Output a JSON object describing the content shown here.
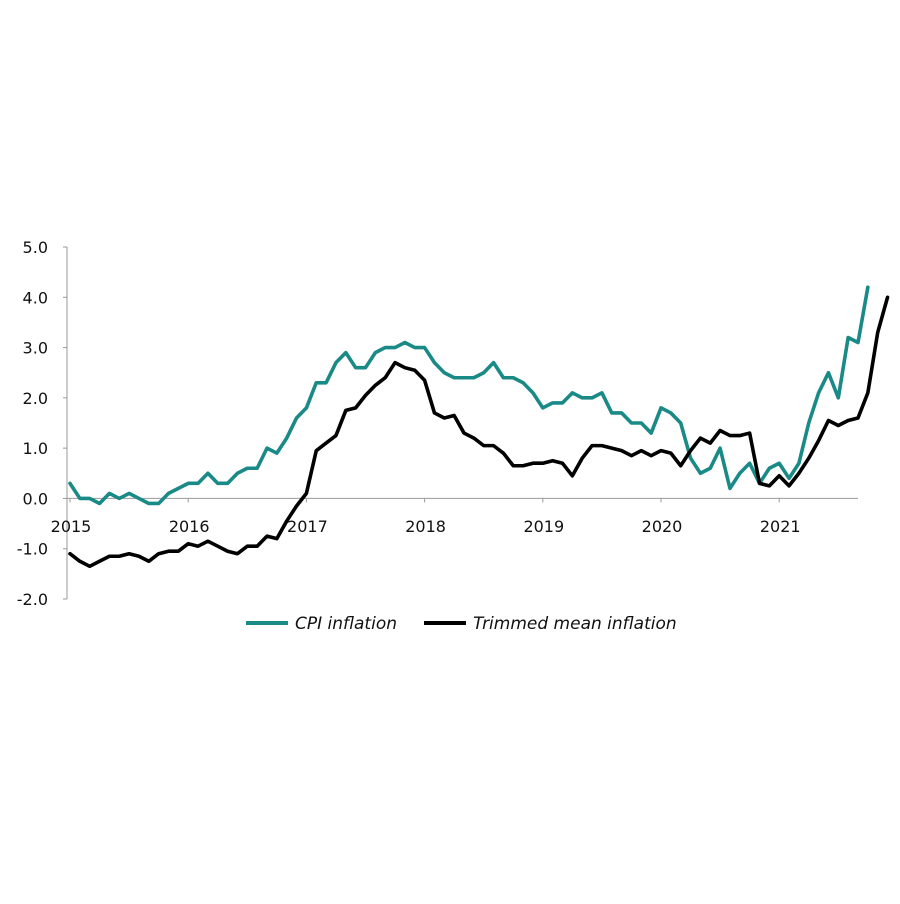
{
  "chart_data": {
    "type": "line",
    "title": "",
    "xlabel": "",
    "ylabel": "",
    "ylim": [
      -2.0,
      5.0
    ],
    "yticks": [
      5.0,
      4.0,
      3.0,
      2.0,
      1.0,
      0.0,
      -1.0,
      -2.0
    ],
    "ytick_labels": [
      "5.0",
      "4.0",
      "3.0",
      "2.0",
      "1.0",
      "0.0",
      "-1.0",
      "-2.0"
    ],
    "x_start": "2015-01",
    "x_frequency": "monthly",
    "xticks": [
      "2015",
      "2016",
      "2017",
      "2018",
      "2019",
      "2020",
      "2021"
    ],
    "grid": false,
    "legend_position": "bottom",
    "series": [
      {
        "name": "CPI inflation",
        "color": "#1a8a87",
        "values": [
          0.3,
          0.0,
          0.0,
          -0.1,
          0.1,
          0.0,
          0.1,
          0.0,
          -0.1,
          -0.1,
          0.1,
          0.2,
          0.3,
          0.3,
          0.5,
          0.3,
          0.3,
          0.5,
          0.6,
          0.6,
          1.0,
          0.9,
          1.2,
          1.6,
          1.8,
          2.3,
          2.3,
          2.7,
          2.9,
          2.6,
          2.6,
          2.9,
          3.0,
          3.0,
          3.1,
          3.0,
          3.0,
          2.7,
          2.5,
          2.4,
          2.4,
          2.4,
          2.5,
          2.7,
          2.4,
          2.4,
          2.3,
          2.1,
          1.8,
          1.9,
          1.9,
          2.1,
          2.0,
          2.0,
          2.1,
          1.7,
          1.7,
          1.5,
          1.5,
          1.3,
          1.8,
          1.7,
          1.5,
          0.8,
          0.5,
          0.6,
          1.0,
          0.2,
          0.5,
          0.7,
          0.3,
          0.6,
          0.7,
          0.4,
          0.7,
          1.5,
          2.1,
          2.5,
          2.0,
          3.2,
          3.1,
          4.2
        ]
      },
      {
        "name": "Trimmed mean inflation",
        "color": "#000000",
        "values": [
          -1.1,
          -1.25,
          -1.35,
          -1.25,
          -1.15,
          -1.15,
          -1.1,
          -1.15,
          -1.25,
          -1.1,
          -1.05,
          -1.05,
          -0.9,
          -0.95,
          -0.85,
          -0.95,
          -1.05,
          -1.1,
          -0.95,
          -0.95,
          -0.75,
          -0.8,
          -0.45,
          -0.15,
          0.1,
          0.95,
          1.1,
          1.25,
          1.75,
          1.8,
          2.05,
          2.25,
          2.4,
          2.7,
          2.6,
          2.55,
          2.35,
          1.7,
          1.6,
          1.65,
          1.3,
          1.2,
          1.05,
          1.05,
          0.9,
          0.65,
          0.65,
          0.7,
          0.7,
          0.75,
          0.7,
          0.45,
          0.8,
          1.05,
          1.05,
          1.0,
          0.95,
          0.85,
          0.95,
          0.85,
          0.95,
          0.9,
          0.65,
          0.95,
          1.2,
          1.1,
          1.35,
          1.25,
          1.25,
          1.3,
          0.3,
          0.25,
          0.45,
          0.25,
          0.5,
          0.8,
          1.15,
          1.55,
          1.45,
          1.55,
          1.6,
          2.1,
          3.3,
          4.0
        ]
      }
    ]
  }
}
